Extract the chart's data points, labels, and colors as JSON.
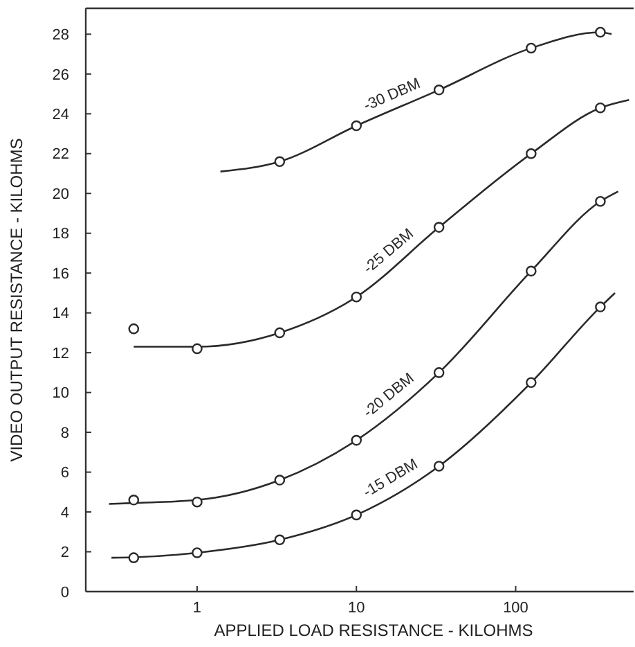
{
  "chart_data": {
    "type": "line",
    "xlabel": "APPLIED LOAD RESISTANCE - KILOHMS",
    "ylabel": "VIDEO OUTPUT RESISTANCE - KILOHMS",
    "log": "x",
    "xlim": [
      0.2,
      550
    ],
    "xticks": [
      1,
      10,
      100
    ],
    "ylim": [
      0,
      29.3
    ],
    "yticks": [
      0,
      2,
      4,
      6,
      8,
      10,
      12,
      14,
      16,
      18,
      20,
      22,
      24,
      26,
      28
    ],
    "grid": false,
    "line_style": "solid",
    "series": [
      {
        "name": "-30 DBM",
        "color": "#2a2a2a",
        "marker": "none",
        "x": [
          1.4,
          3.3,
          10,
          33,
          125,
          340,
          400
        ],
        "values": [
          21.1,
          21.6,
          23.4,
          25.2,
          27.3,
          28.1,
          28.0
        ]
      },
      {
        "type": "scatter",
        "color": "#2a2a2a",
        "marker": "circle",
        "x": [
          3.3,
          10,
          33,
          125,
          340
        ],
        "values": [
          21.6,
          23.4,
          25.2,
          27.3,
          28.1
        ]
      },
      {
        "name": "-25 DBM",
        "color": "#2a2a2a",
        "marker": "none",
        "x": [
          0.4,
          1,
          3.3,
          10,
          33,
          125,
          340,
          515
        ],
        "values": [
          12.3,
          12.3,
          13.0,
          14.8,
          18.3,
          22.0,
          24.3,
          24.7
        ]
      },
      {
        "type": "scatter",
        "color": "#2a2a2a",
        "marker": "circle",
        "x": [
          0.4,
          1,
          3.3,
          10,
          33,
          125,
          340
        ],
        "values": [
          13.2,
          12.2,
          13.0,
          14.8,
          18.3,
          22.0,
          24.3
        ]
      },
      {
        "name": "-20 DBM",
        "color": "#2a2a2a",
        "marker": "none",
        "x": [
          0.28,
          0.4,
          1,
          3.3,
          10,
          33,
          125,
          340,
          440
        ],
        "values": [
          4.4,
          4.45,
          4.6,
          5.6,
          7.6,
          11.0,
          16.1,
          19.6,
          20.1
        ]
      },
      {
        "type": "scatter",
        "color": "#2a2a2a",
        "marker": "circle",
        "x": [
          0.4,
          1,
          3.3,
          10,
          33,
          125,
          340
        ],
        "values": [
          4.6,
          4.5,
          5.6,
          7.6,
          11.0,
          16.1,
          19.6
        ]
      },
      {
        "name": "-15 DBM",
        "color": "#2a2a2a",
        "marker": "none",
        "x": [
          0.29,
          0.4,
          1,
          3.3,
          10,
          33,
          125,
          340,
          420
        ],
        "values": [
          1.7,
          1.72,
          1.95,
          2.6,
          3.85,
          6.3,
          10.5,
          14.3,
          15.0
        ]
      },
      {
        "type": "scatter",
        "color": "#2a2a2a",
        "marker": "circle",
        "x": [
          0.4,
          1,
          3.3,
          10,
          33,
          125,
          340
        ],
        "values": [
          1.7,
          1.95,
          2.6,
          3.85,
          6.3,
          10.5,
          14.3
        ]
      }
    ]
  }
}
